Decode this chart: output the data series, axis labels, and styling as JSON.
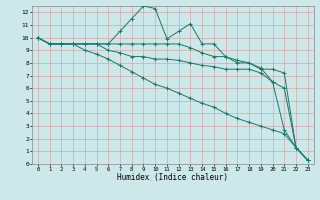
{
  "xlabel": "Humidex (Indice chaleur)",
  "xlim": [
    -0.5,
    23.5
  ],
  "ylim": [
    0,
    12.5
  ],
  "background_color": "#cce8e8",
  "grid_color": "#d4a8a8",
  "line_color": "#1a7868",
  "line1": [
    10,
    9.5,
    9.5,
    9.5,
    9.5,
    9.5,
    9.5,
    10.5,
    11.5,
    12.5,
    12.3,
    9.9,
    10.5,
    11.1,
    9.5,
    9.5,
    8.5,
    8.0,
    8.0,
    7.6,
    6.5,
    2.7,
    1.3,
    0.3
  ],
  "line2": [
    10,
    9.5,
    9.5,
    9.5,
    9.5,
    9.5,
    9.5,
    9.5,
    9.5,
    9.5,
    9.5,
    9.5,
    9.5,
    9.2,
    8.8,
    8.5,
    8.5,
    8.2,
    8.0,
    7.5,
    7.5,
    7.2,
    1.3,
    0.3
  ],
  "line3": [
    10,
    9.5,
    9.5,
    9.5,
    9.5,
    9.5,
    9.0,
    8.8,
    8.5,
    8.5,
    8.3,
    8.3,
    8.2,
    8.0,
    7.8,
    7.7,
    7.5,
    7.5,
    7.5,
    7.2,
    6.5,
    6.0,
    1.3,
    0.3
  ],
  "line4": [
    10,
    9.5,
    9.5,
    9.5,
    9.0,
    8.7,
    8.3,
    7.8,
    7.3,
    6.8,
    6.3,
    6.0,
    5.6,
    5.2,
    4.8,
    4.5,
    4.0,
    3.6,
    3.3,
    3.0,
    2.7,
    2.4,
    1.3,
    0.3
  ],
  "yticks": [
    0,
    1,
    2,
    3,
    4,
    5,
    6,
    7,
    8,
    9,
    10,
    11,
    12
  ],
  "xticks": [
    0,
    1,
    2,
    3,
    4,
    5,
    6,
    7,
    8,
    9,
    10,
    11,
    12,
    13,
    14,
    15,
    16,
    17,
    18,
    19,
    20,
    21,
    22,
    23
  ]
}
